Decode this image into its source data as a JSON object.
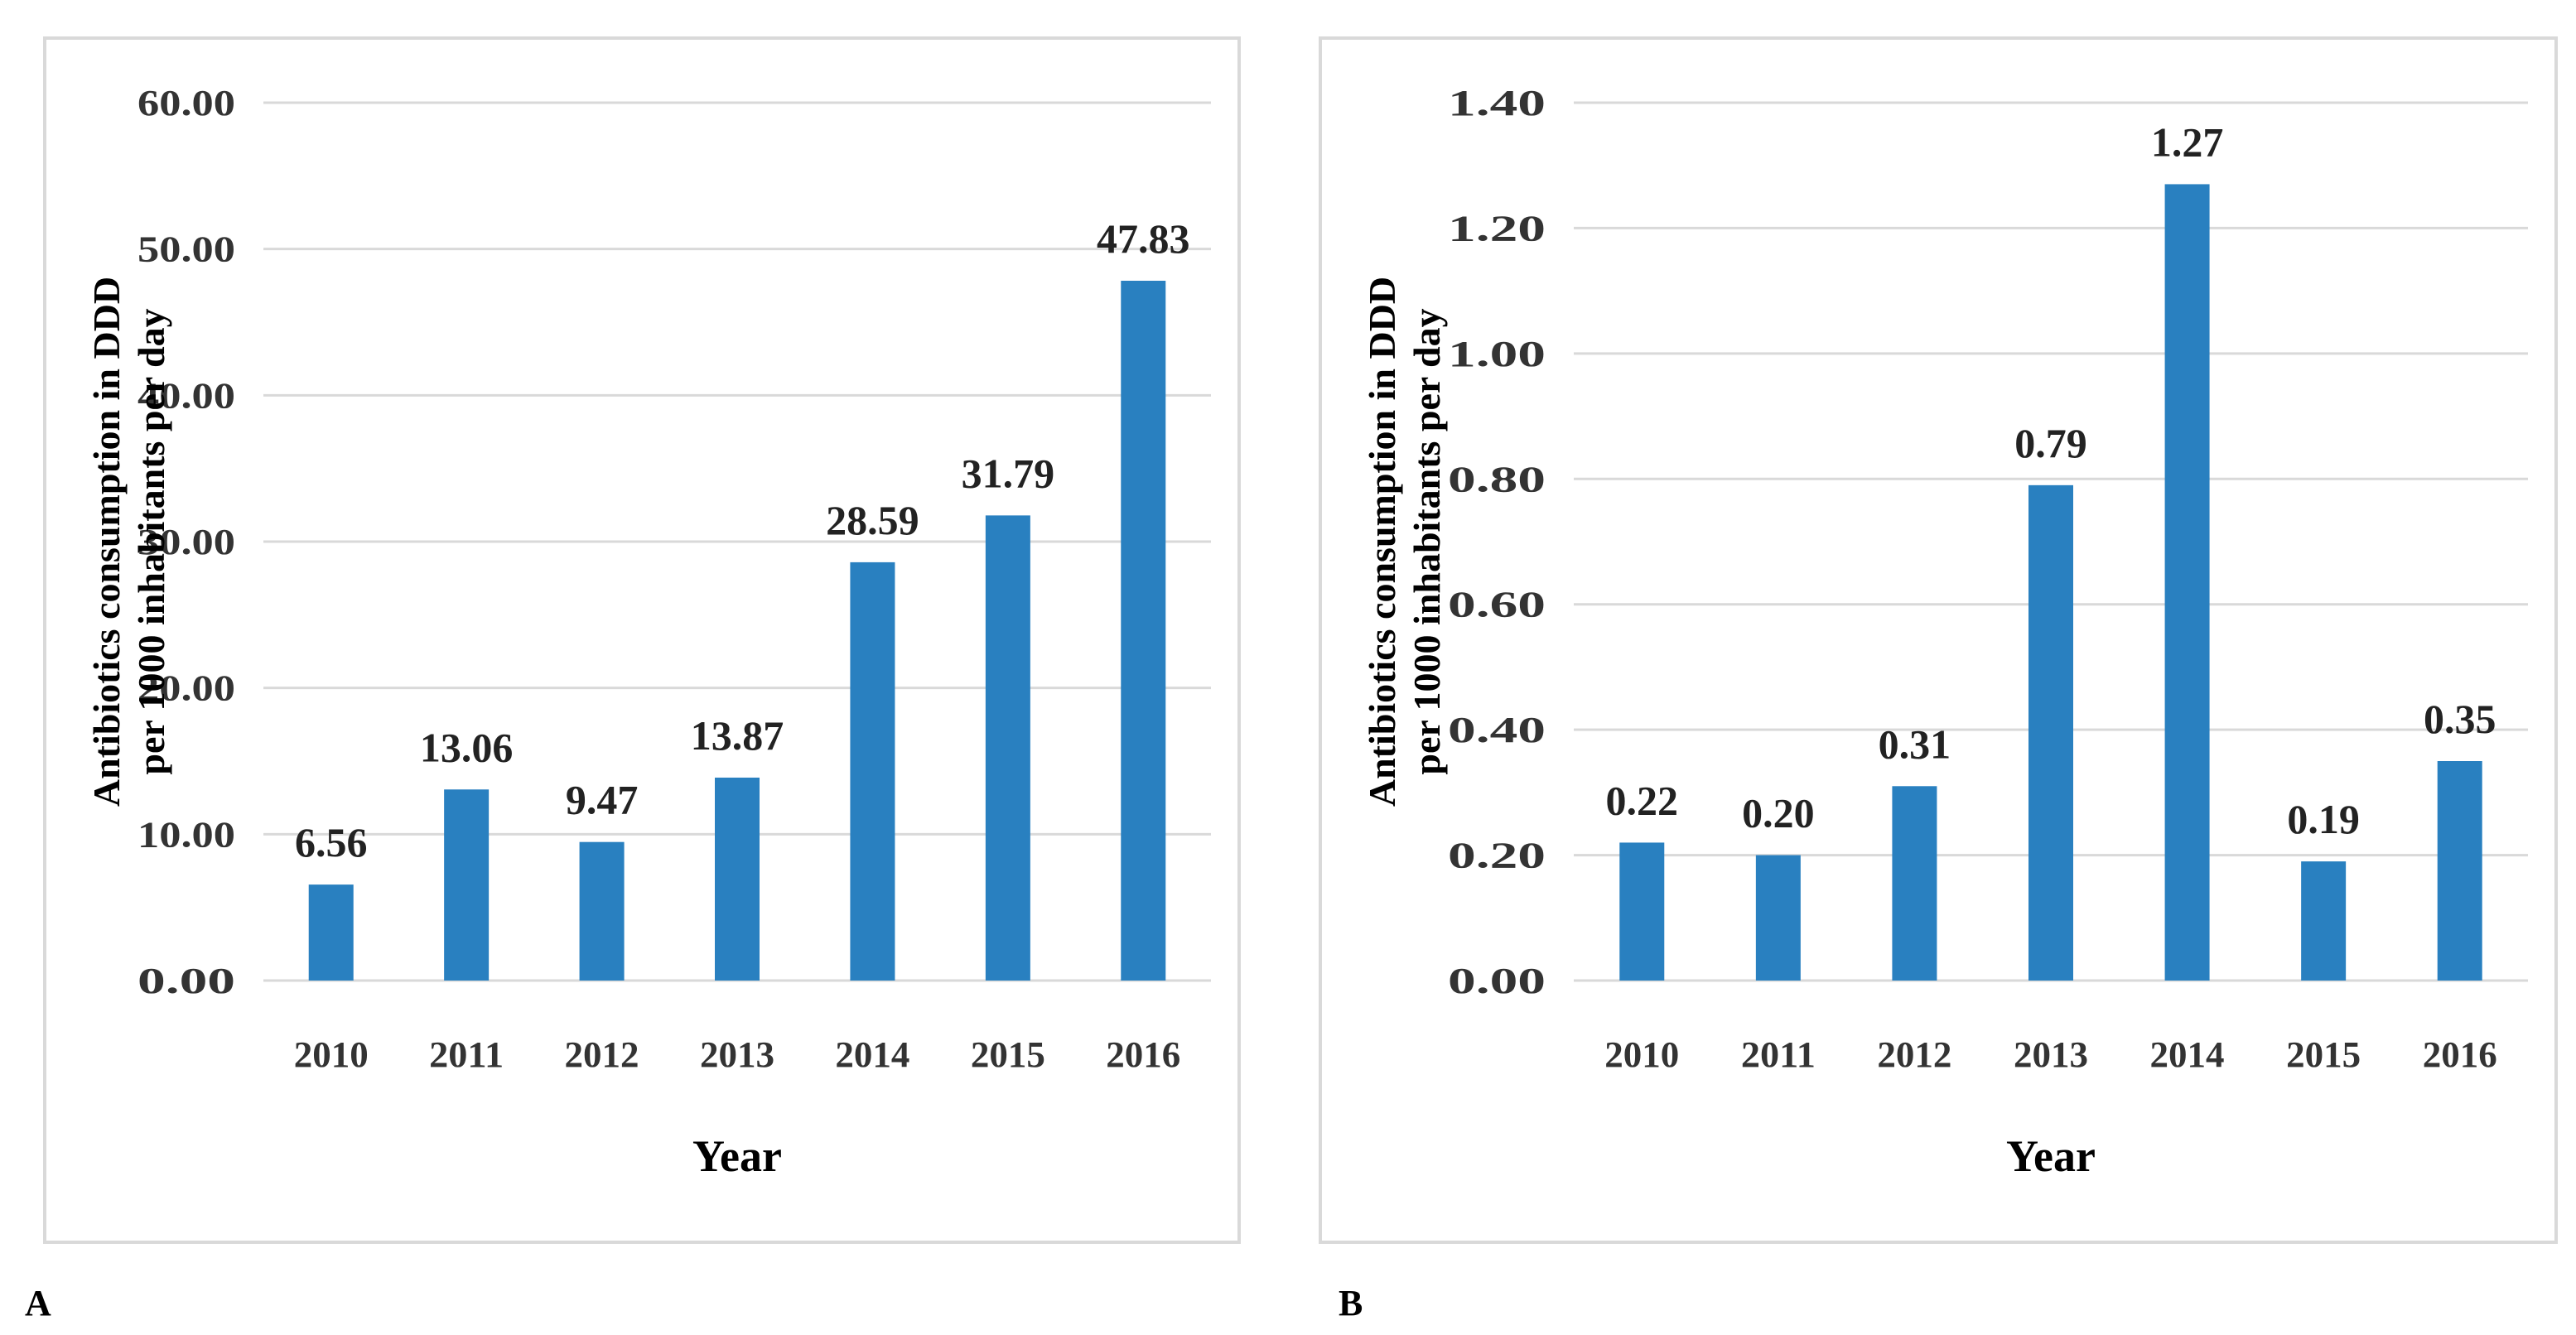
{
  "chart_data": [
    {
      "panel": "A",
      "type": "bar",
      "categories": [
        "2010",
        "2011",
        "2012",
        "2013",
        "2014",
        "2015",
        "2016"
      ],
      "values": [
        6.56,
        13.06,
        9.47,
        13.87,
        28.59,
        31.79,
        47.83
      ],
      "data_labels": [
        "6.56",
        "13.06",
        "9.47",
        "13.87",
        "28.59",
        "31.79",
        "47.83"
      ],
      "yticks": [
        "0.00",
        "10.00",
        "20.00",
        "30.00",
        "40.00",
        "50.00",
        "60.00"
      ],
      "ylim": [
        0,
        60
      ],
      "xlabel": "Year",
      "ylabel_line1": "Antibiotics  consumption in DDD",
      "ylabel_line2": "per 1000 inhabitants per day",
      "bar_color": "#2980c0",
      "grid": true
    },
    {
      "panel": "B",
      "type": "bar",
      "categories": [
        "2010",
        "2011",
        "2012",
        "2013",
        "2014",
        "2015",
        "2016"
      ],
      "values": [
        0.22,
        0.2,
        0.31,
        0.79,
        1.27,
        0.19,
        0.35
      ],
      "data_labels": [
        "0.22",
        "0.20",
        "0.31",
        "0.79",
        "1.27",
        "0.19",
        "0.35"
      ],
      "yticks": [
        "0.00",
        "0.20",
        "0.40",
        "0.60",
        "0.80",
        "1.00",
        "1.20",
        "1.40"
      ],
      "ylim": [
        0,
        1.4
      ],
      "xlabel": "Year",
      "ylabel_line1": "Antibiotics  consumption in DDD",
      "ylabel_line2": "per 1000 inhabitants per day",
      "bar_color": "#2980c0",
      "grid": true
    }
  ],
  "panel_labels": {
    "a": "A",
    "b": "B"
  }
}
